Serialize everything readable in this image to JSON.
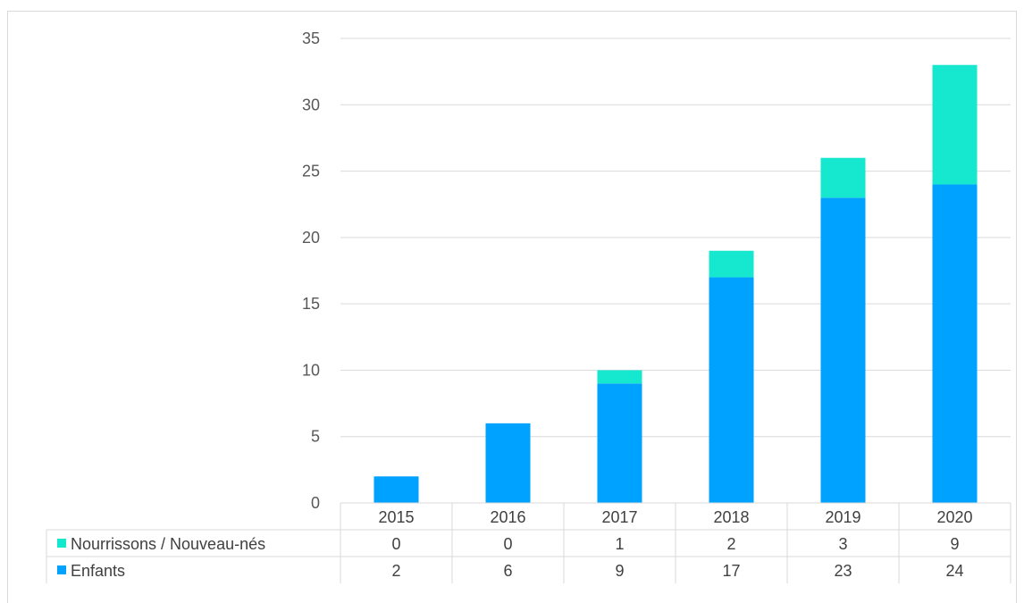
{
  "chart_data": {
    "type": "bar",
    "stacked": true,
    "title": "",
    "xlabel": "",
    "ylabel": "",
    "categories": [
      "2015",
      "2016",
      "2017",
      "2018",
      "2019",
      "2020"
    ],
    "series": [
      {
        "name": "Enfants",
        "values": [
          2,
          6,
          9,
          17,
          23,
          24
        ],
        "color": "#00a2ff"
      },
      {
        "name": "Nourrissons / Nouveau-nés",
        "values": [
          0,
          0,
          1,
          2,
          3,
          9
        ],
        "color": "#16e7cf"
      }
    ],
    "ylim": [
      0,
      35
    ],
    "yticks": [
      0,
      5,
      10,
      15,
      20,
      25,
      30,
      35
    ],
    "grid": true,
    "legend": "data-table",
    "data_table_rows": [
      "Nourrissons / Nouveau-nés",
      "Enfants"
    ]
  }
}
